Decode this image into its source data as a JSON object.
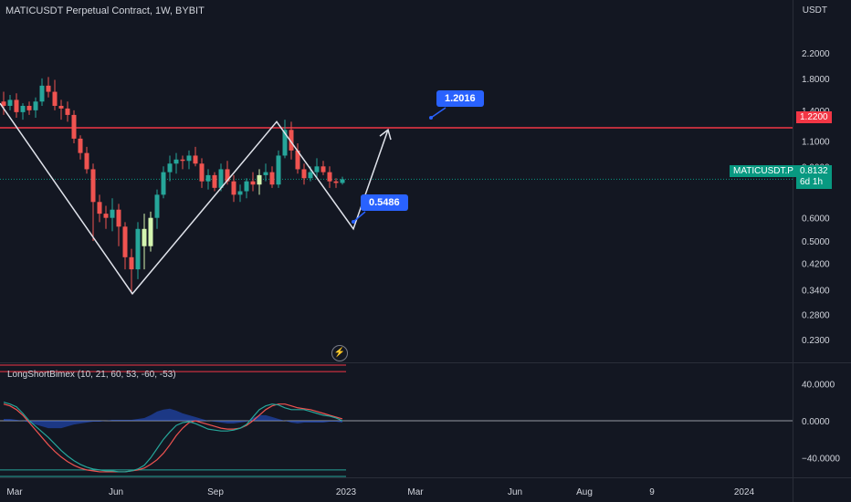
{
  "header": {
    "title": "MATICUSDT Perpetual Contract, 1W, BYBIT",
    "currency": "USDT"
  },
  "colors": {
    "bg": "#131722",
    "up": "#26a69a",
    "down": "#ef5350",
    "doji": "#d4f5b0",
    "level": "#f23645",
    "callout": "#2962ff",
    "price_tag": "#089981",
    "pattern": "#e0e3eb"
  },
  "price_axis": {
    "ticks": [
      "2.2000",
      "1.8000",
      "1.4000",
      "1.1000",
      "0.9000",
      "0.6000",
      "0.5000",
      "0.4200",
      "0.3400",
      "0.2800",
      "0.2300"
    ]
  },
  "indicator": {
    "name": "LongShortBimex (10, 21, 60, 53, -60, -53)",
    "ticks": [
      "40.0000",
      "0.0000",
      "−40.0000"
    ]
  },
  "time_axis": [
    "Mar",
    "Jun",
    "Sep",
    "2023",
    "Mar",
    "Jun",
    "Aug",
    "9",
    "2024"
  ],
  "tags": {
    "level": "1.2200",
    "symbol": "MATICUSDT.P",
    "price": "0.8132",
    "countdown": "6d 1h"
  },
  "callouts": {
    "top": "1.2016",
    "bottom": "0.5486"
  },
  "chart_data": {
    "type": "candlestick",
    "title": "MATICUSDT Perpetual Contract, 1W, BYBIT",
    "ylabel": "USDT",
    "y_scale": "log",
    "ylim": [
      0.195,
      2.85
    ],
    "candles": [
      {
        "o": 1.5,
        "h": 1.62,
        "l": 1.35,
        "c": 1.45
      },
      {
        "o": 1.45,
        "h": 1.58,
        "l": 1.4,
        "c": 1.52
      },
      {
        "o": 1.52,
        "h": 1.6,
        "l": 1.32,
        "c": 1.38
      },
      {
        "o": 1.38,
        "h": 1.48,
        "l": 1.3,
        "c": 1.45
      },
      {
        "o": 1.45,
        "h": 1.5,
        "l": 1.35,
        "c": 1.4
      },
      {
        "o": 1.4,
        "h": 1.55,
        "l": 1.32,
        "c": 1.5
      },
      {
        "o": 1.5,
        "h": 1.8,
        "l": 1.45,
        "c": 1.7
      },
      {
        "o": 1.7,
        "h": 1.82,
        "l": 1.55,
        "c": 1.62
      },
      {
        "o": 1.62,
        "h": 1.78,
        "l": 1.4,
        "c": 1.45
      },
      {
        "o": 1.45,
        "h": 1.52,
        "l": 1.3,
        "c": 1.42
      },
      {
        "o": 1.42,
        "h": 1.5,
        "l": 1.28,
        "c": 1.35
      },
      {
        "o": 1.35,
        "h": 1.4,
        "l": 1.08,
        "c": 1.12
      },
      {
        "o": 1.12,
        "h": 1.15,
        "l": 0.95,
        "c": 1.0
      },
      {
        "o": 1.0,
        "h": 1.05,
        "l": 0.85,
        "c": 0.88
      },
      {
        "o": 0.88,
        "h": 0.92,
        "l": 0.5,
        "c": 0.68
      },
      {
        "o": 0.68,
        "h": 0.72,
        "l": 0.58,
        "c": 0.62
      },
      {
        "o": 0.62,
        "h": 0.66,
        "l": 0.55,
        "c": 0.6
      },
      {
        "o": 0.6,
        "h": 0.7,
        "l": 0.54,
        "c": 0.64
      },
      {
        "o": 0.64,
        "h": 0.67,
        "l": 0.48,
        "c": 0.56
      },
      {
        "o": 0.56,
        "h": 0.58,
        "l": 0.4,
        "c": 0.44
      },
      {
        "o": 0.44,
        "h": 0.47,
        "l": 0.33,
        "c": 0.4
      },
      {
        "o": 0.4,
        "h": 0.58,
        "l": 0.37,
        "c": 0.55
      },
      {
        "o": 0.55,
        "h": 0.62,
        "l": 0.4,
        "c": 0.48
      },
      {
        "o": 0.48,
        "h": 0.63,
        "l": 0.46,
        "c": 0.6
      },
      {
        "o": 0.6,
        "h": 0.75,
        "l": 0.55,
        "c": 0.72
      },
      {
        "o": 0.72,
        "h": 0.9,
        "l": 0.7,
        "c": 0.86
      },
      {
        "o": 0.86,
        "h": 0.98,
        "l": 0.8,
        "c": 0.92
      },
      {
        "o": 0.92,
        "h": 1.0,
        "l": 0.85,
        "c": 0.95
      },
      {
        "o": 0.95,
        "h": 0.98,
        "l": 0.88,
        "c": 0.94
      },
      {
        "o": 0.94,
        "h": 1.02,
        "l": 0.88,
        "c": 0.98
      },
      {
        "o": 0.98,
        "h": 1.05,
        "l": 0.9,
        "c": 0.92
      },
      {
        "o": 0.92,
        "h": 0.96,
        "l": 0.76,
        "c": 0.8
      },
      {
        "o": 0.8,
        "h": 0.88,
        "l": 0.75,
        "c": 0.84
      },
      {
        "o": 0.84,
        "h": 0.86,
        "l": 0.74,
        "c": 0.76
      },
      {
        "o": 0.76,
        "h": 0.92,
        "l": 0.74,
        "c": 0.88
      },
      {
        "o": 0.88,
        "h": 0.94,
        "l": 0.78,
        "c": 0.8
      },
      {
        "o": 0.8,
        "h": 0.84,
        "l": 0.68,
        "c": 0.72
      },
      {
        "o": 0.72,
        "h": 0.78,
        "l": 0.68,
        "c": 0.74
      },
      {
        "o": 0.74,
        "h": 0.82,
        "l": 0.7,
        "c": 0.8
      },
      {
        "o": 0.8,
        "h": 0.86,
        "l": 0.74,
        "c": 0.78
      },
      {
        "o": 0.78,
        "h": 0.88,
        "l": 0.72,
        "c": 0.84
      },
      {
        "o": 0.84,
        "h": 0.92,
        "l": 0.8,
        "c": 0.86
      },
      {
        "o": 0.86,
        "h": 0.9,
        "l": 0.76,
        "c": 0.78
      },
      {
        "o": 0.78,
        "h": 1.02,
        "l": 0.76,
        "c": 0.98
      },
      {
        "o": 0.98,
        "h": 1.3,
        "l": 0.96,
        "c": 1.2
      },
      {
        "o": 1.2,
        "h": 1.28,
        "l": 0.95,
        "c": 1.02
      },
      {
        "o": 1.02,
        "h": 1.08,
        "l": 0.85,
        "c": 0.88
      },
      {
        "o": 0.88,
        "h": 0.92,
        "l": 0.78,
        "c": 0.82
      },
      {
        "o": 0.82,
        "h": 0.9,
        "l": 0.8,
        "c": 0.86
      },
      {
        "o": 0.86,
        "h": 0.96,
        "l": 0.82,
        "c": 0.9
      },
      {
        "o": 0.9,
        "h": 0.94,
        "l": 0.84,
        "c": 0.86
      },
      {
        "o": 0.86,
        "h": 0.9,
        "l": 0.76,
        "c": 0.8
      },
      {
        "o": 0.8,
        "h": 0.82,
        "l": 0.76,
        "c": 0.79
      },
      {
        "o": 0.79,
        "h": 0.83,
        "l": 0.78,
        "c": 0.813
      }
    ],
    "doji_indices": [
      22,
      23,
      40
    ],
    "level": 1.22,
    "last_price": 0.8132,
    "pattern_points": [
      1.48,
      0.33,
      1.28,
      0.55,
      1.2016
    ],
    "callouts": [
      1.2016,
      0.5486
    ],
    "indicator": {
      "name": "LongShortBimex (10, 21, 60, 53, -60, -53)",
      "ylim": [
        -60,
        60
      ],
      "levels": [
        60,
        53,
        -60,
        -53
      ],
      "fast": [
        20,
        18,
        15,
        8,
        0,
        -6,
        -12,
        -18,
        -25,
        -32,
        -38,
        -43,
        -47,
        -50,
        -52,
        -53,
        -54,
        -54,
        -55,
        -55,
        -54,
        -52,
        -48,
        -40,
        -30,
        -20,
        -12,
        -5,
        -2,
        -1,
        -3,
        -6,
        -9,
        -10,
        -11,
        -11,
        -10,
        -8,
        -4,
        4,
        12,
        16,
        18,
        17,
        14,
        12,
        12,
        12,
        10,
        8,
        6,
        5,
        3,
        0
      ],
      "slow": [
        18,
        16,
        12,
        6,
        -2,
        -10,
        -18,
        -26,
        -33,
        -39,
        -44,
        -48,
        -51,
        -53,
        -54,
        -55,
        -55,
        -55,
        -55,
        -55,
        -54,
        -53,
        -51,
        -47,
        -42,
        -35,
        -26,
        -16,
        -8,
        -2,
        0,
        -2,
        -4,
        -6,
        -8,
        -9,
        -9,
        -8,
        -5,
        0,
        6,
        12,
        16,
        18,
        18,
        16,
        14,
        13,
        12,
        10,
        8,
        6,
        4,
        2
      ],
      "histogram": [
        2,
        2,
        1,
        0,
        -2,
        -4,
        -6,
        -8,
        -8,
        -8,
        -6,
        -4,
        -3,
        -2,
        -1,
        -1,
        0,
        1,
        1,
        1,
        1,
        2,
        3,
        6,
        10,
        12,
        13,
        11,
        8,
        6,
        4,
        2,
        0,
        -1,
        -2,
        -3,
        -3,
        -2,
        -1,
        3,
        6,
        6,
        4,
        2,
        0,
        -2,
        -3,
        -2,
        -2,
        -2,
        -2,
        -1,
        -1,
        -2
      ]
    }
  }
}
